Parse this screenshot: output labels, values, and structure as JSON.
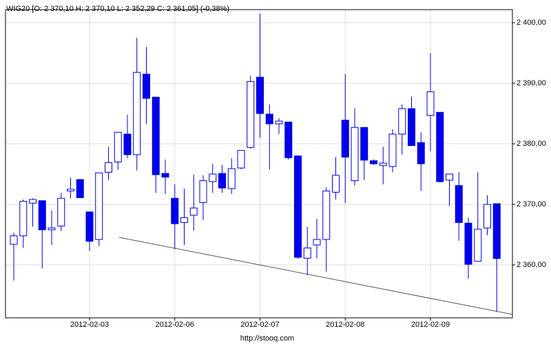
{
  "chart_data": {
    "type": "candlestick",
    "title": "WIG20 [O: 2 370,10  H: 2 370,10  L: 2 352,29  C: 2 361,05] (-0,38%)",
    "footer": "http://stooq.com",
    "categories": [
      null,
      null,
      null,
      null,
      null,
      null,
      null,
      null,
      "2012-02-03",
      null,
      null,
      null,
      null,
      null,
      null,
      null,
      null,
      "2012-02-06",
      null,
      null,
      null,
      null,
      null,
      null,
      null,
      null,
      "2012-02-07",
      null,
      null,
      null,
      null,
      null,
      null,
      null,
      null,
      "2012-02-08",
      null,
      null,
      null,
      null,
      null,
      null,
      null,
      null,
      "2012-02-09",
      null,
      null,
      null,
      null,
      null,
      null,
      null
    ],
    "open": [
      2363.4,
      2364.8,
      2370.2,
      2370.6,
      2365.8,
      2366.4,
      2372.2,
      2374.1,
      2368.75,
      2364.2,
      2375.3,
      2377.0,
      2381.6,
      2378.2,
      2391.5,
      2387.7,
      2375.1,
      2371.0,
      2367.0,
      2368.2,
      2370.3,
      2373.75,
      2375.1,
      2372.6,
      2376.0,
      2379.4,
      2391.0,
      2384.9,
      2383.3,
      2383.6,
      2378.0,
      2361.1,
      2363.3,
      2364.2,
      2372.0,
      2383.9,
      2373.9,
      2382.7,
      2377.2,
      2376.4,
      2376.25,
      2381.6,
      2385.8,
      2380.2,
      2384.7,
      2385.2,
      2374.0,
      2373.1,
      2366.9,
      2360.6,
      2366.1,
      2370.1
    ],
    "high": [
      2365.3,
      2370.8,
      2371.0,
      2370.6,
      2369.0,
      2371.9,
      2374.4,
      2374.1,
      2368.75,
      2375.2,
      2379.5,
      2381.9,
      2384.8,
      2397.5,
      2396.0,
      2387.7,
      2377.4,
      2373.3,
      2372.6,
      2374.9,
      2374.8,
      2376.7,
      2376.5,
      2377.6,
      2378.9,
      2391.25,
      2401.5,
      2386.5,
      2384.2,
      2383.6,
      2378.0,
      2366.25,
      2367.6,
      2372.8,
      2377.8,
      2391.5,
      2385.9,
      2382.7,
      2377.4,
      2379.5,
      2382.4,
      2386.5,
      2387.8,
      2381.9,
      2395.0,
      2385.2,
      2375.0,
      2375.3,
      2367.8,
      2375.3,
      2371.5,
      2370.1
    ],
    "low": [
      2357.4,
      2362.8,
      2366.3,
      2359.4,
      2363.3,
      2365.6,
      2371.0,
      2371.1,
      2362.3,
      2363.1,
      2374.0,
      2375.7,
      2377.6,
      2375.6,
      2383.3,
      2371.9,
      2371.7,
      2362.6,
      2363.3,
      2365.7,
      2367.4,
      2371.9,
      2371.9,
      2371.7,
      2375.8,
      2379.2,
      2381.0,
      2375.7,
      2381.6,
      2377.4,
      2361.0,
      2358.3,
      2361.1,
      2358.9,
      2370.8,
      2370.2,
      2373.1,
      2374.0,
      2376.5,
      2373.3,
      2375.3,
      2378.2,
      2379.7,
      2372.2,
      2378.75,
      2373.6,
      2369.7,
      2364.0,
      2357.7,
      2360.6,
      2364.9,
      2352.29
    ],
    "close": [
      2364.8,
      2370.5,
      2370.8,
      2365.8,
      2366.1,
      2371.0,
      2372.5,
      2371.1,
      2363.9,
      2375.2,
      2376.9,
      2381.9,
      2378.2,
      2391.8,
      2387.5,
      2374.9,
      2374.5,
      2366.8,
      2367.8,
      2369.4,
      2373.9,
      2375.0,
      2372.7,
      2375.9,
      2378.9,
      2390.3,
      2385.0,
      2383.3,
      2383.75,
      2377.7,
      2361.25,
      2362.8,
      2364.2,
      2372.2,
      2374.8,
      2377.8,
      2382.7,
      2377.3,
      2376.7,
      2376.8,
      2381.6,
      2385.8,
      2379.7,
      2376.7,
      2388.6,
      2373.75,
      2375.0,
      2367.0,
      2360.1,
      2365.9,
      2370.0,
      2361.05
    ],
    "up_color": "#ffffff",
    "down_color": "#0000ee",
    "line_color": "#0000cc",
    "ylim": [
      2351.25,
      2402.16
    ],
    "yticks": [
      {
        "value": 2360,
        "label": "2 360,00"
      },
      {
        "value": 2370,
        "label": "2 370,00"
      },
      {
        "value": 2380,
        "label": "2 380,00"
      },
      {
        "value": 2390,
        "label": "2 390,00"
      },
      {
        "value": 2400,
        "label": "2 400,00"
      }
    ],
    "grid": true
  }
}
